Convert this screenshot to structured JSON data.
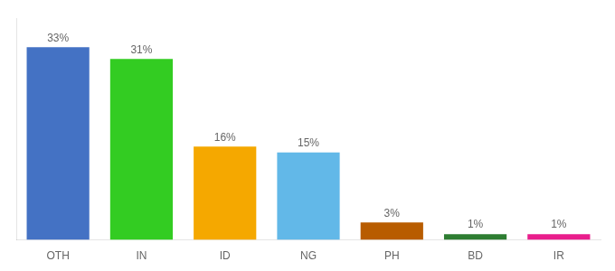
{
  "chart_data": {
    "type": "bar",
    "categories": [
      "OTH",
      "IN",
      "ID",
      "NG",
      "PH",
      "BD",
      "IR"
    ],
    "values": [
      33,
      31,
      16,
      15,
      3,
      1,
      1
    ],
    "value_labels": [
      "33%",
      "31%",
      "16%",
      "15%",
      "3%",
      "1%",
      "1%"
    ],
    "colors": [
      "#4472c4",
      "#33cc22",
      "#f5a800",
      "#62b8e8",
      "#b85c00",
      "#2e7d32",
      "#e91e8c"
    ],
    "ylim": [
      0,
      38
    ],
    "grid": false,
    "data_labels": true,
    "tick_labels": "x"
  }
}
